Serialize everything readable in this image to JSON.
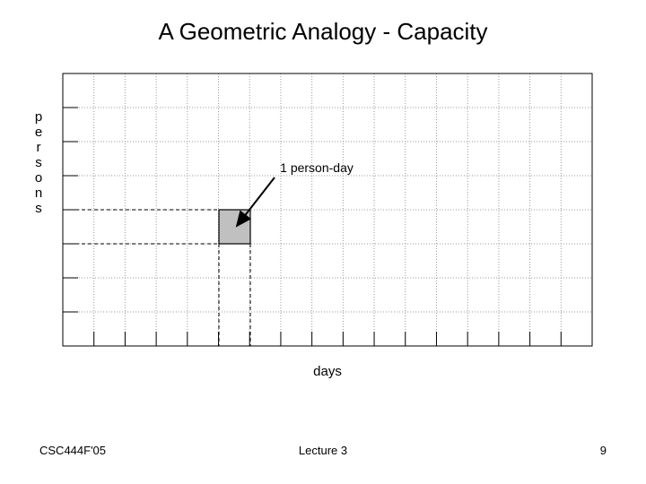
{
  "title": "A Geometric Analogy - Capacity",
  "y_label": "persons",
  "x_label": "days",
  "annotation": "1 person-day",
  "footer": {
    "left": "CSC444F'05",
    "center": "Lecture 3",
    "right": "9"
  }
}
